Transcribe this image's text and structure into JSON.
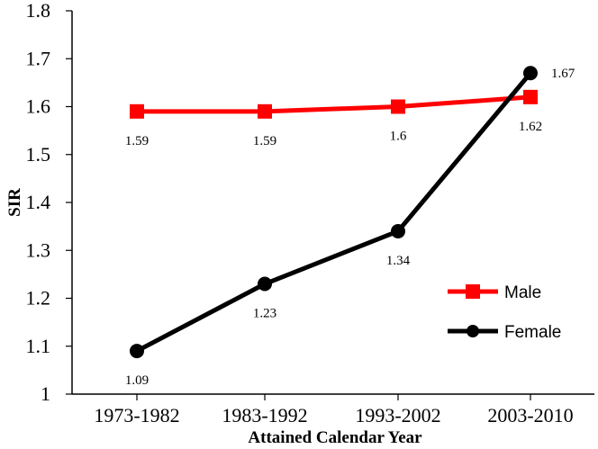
{
  "chart_data": {
    "type": "line",
    "categories": [
      "1973-1982",
      "1983-1992",
      "1993-2002",
      "2003-2010"
    ],
    "series": [
      {
        "name": "Male",
        "values": [
          1.59,
          1.59,
          1.6,
          1.62
        ],
        "labels": [
          "1.59",
          "1.59",
          "1.6",
          "1.62"
        ],
        "color": "#ff0000",
        "marker": "square"
      },
      {
        "name": "Female",
        "values": [
          1.09,
          1.23,
          1.34,
          1.67
        ],
        "labels": [
          "1.09",
          "1.23",
          "1.34",
          "1.67"
        ],
        "color": "#000000",
        "marker": "circle"
      }
    ],
    "title": "",
    "xlabel": "Attained Calendar Year",
    "ylabel": "SIR",
    "ylim": [
      1,
      1.8
    ],
    "yticks": [
      "1",
      "1.1",
      "1.2",
      "1.3",
      "1.4",
      "1.5",
      "1.6",
      "1.7",
      "1.8"
    ],
    "grid": false,
    "legend": "right"
  }
}
